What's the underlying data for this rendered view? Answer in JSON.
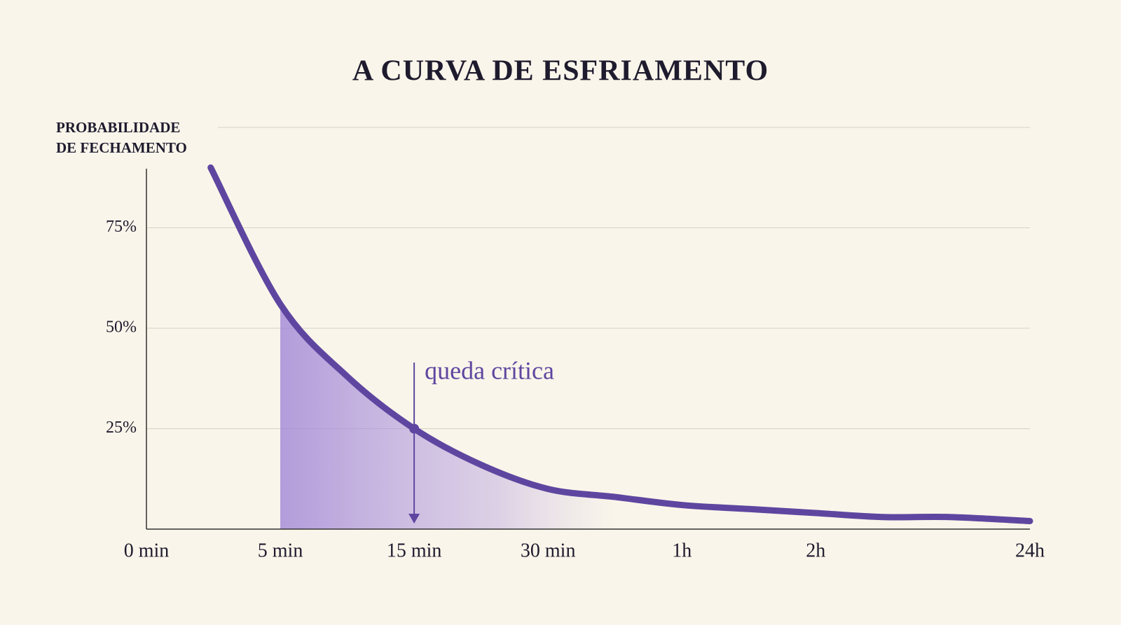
{
  "chart_data": {
    "type": "line",
    "title": "A CURVA DE ESFRIAMENTO",
    "ylabel": [
      "PROBABILIDADE",
      "DE FECHAMENTO"
    ],
    "x": [
      0.48,
      1,
      1.5,
      2,
      2.5,
      3,
      3.5,
      4,
      4.5,
      5,
      5.5,
      6,
      6.6
    ],
    "series": [
      {
        "name": "probabilidade",
        "color": "#5e46a0",
        "values": [
          90,
          56,
          38,
          25,
          16,
          10,
          8,
          6,
          5,
          4,
          3,
          3,
          2
        ]
      }
    ],
    "xlim": [
      0,
      6.6
    ],
    "xticks": [
      {
        "value": 0,
        "label": "0 min"
      },
      {
        "value": 1,
        "label": "5 min"
      },
      {
        "value": 2,
        "label": "15 min"
      },
      {
        "value": 3,
        "label": "30 min"
      },
      {
        "value": 4,
        "label": "1h"
      },
      {
        "value": 5,
        "label": "2h"
      },
      {
        "value": 6.6,
        "label": "24h"
      }
    ],
    "ylim": [
      0,
      100
    ],
    "yticks": [
      {
        "value": 25,
        "label": "25%"
      },
      {
        "value": 50,
        "label": "50%"
      },
      {
        "value": 75,
        "label": "75%"
      }
    ],
    "grid": true,
    "annotation": {
      "text": "queda crítica",
      "x": 2,
      "y": 25
    }
  }
}
